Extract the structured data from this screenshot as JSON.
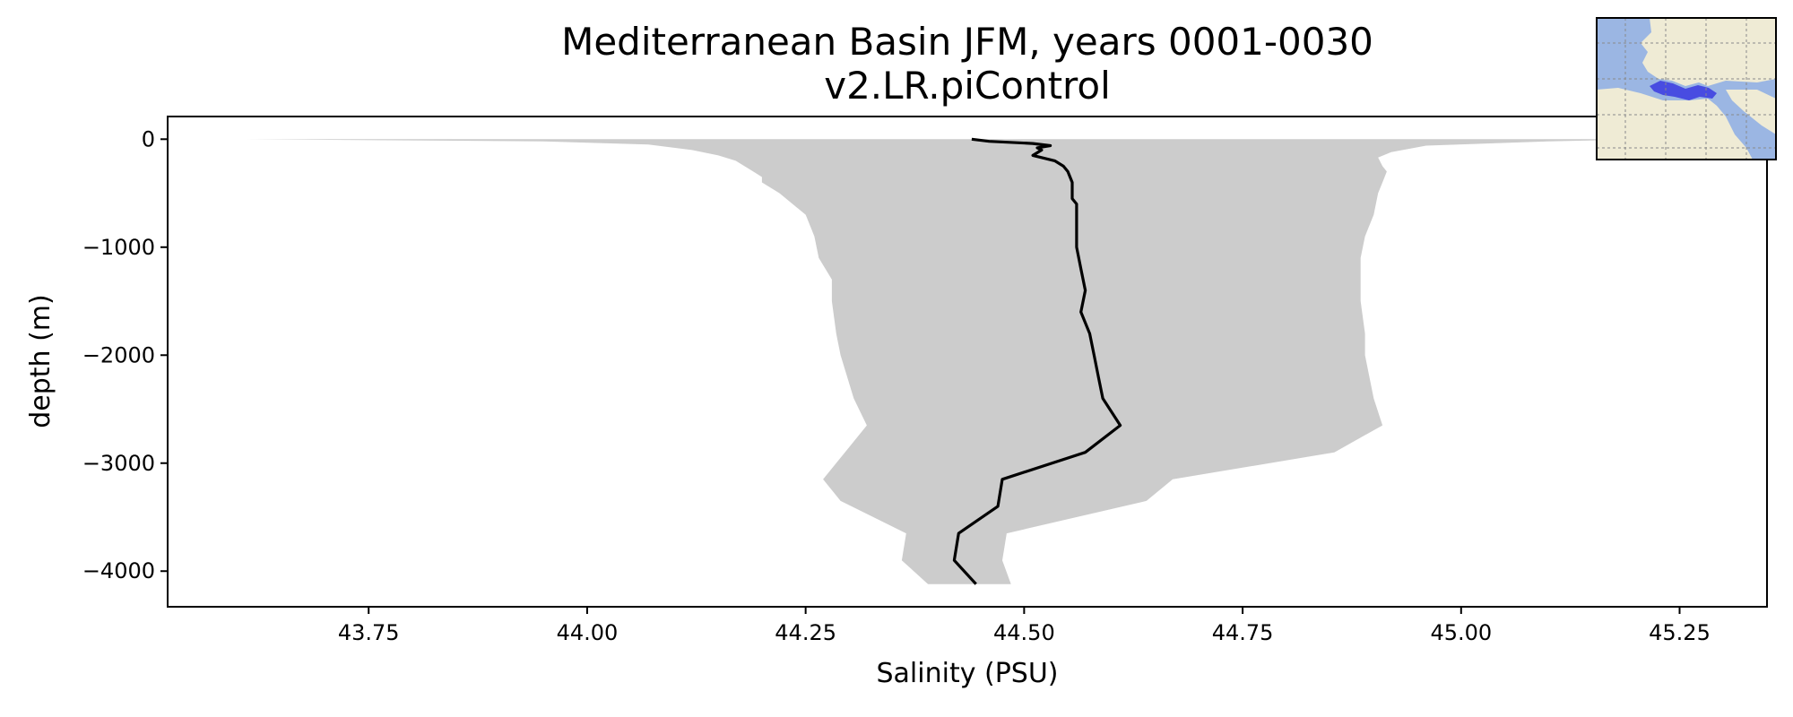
{
  "chart_data": {
    "type": "line",
    "title": "Mediterranean Basin JFM, years 0001-0030",
    "subtitle": "v2.LR.piControl",
    "xlabel": "Salinity (PSU)",
    "ylabel": "depth (m)",
    "xlim": [
      43.52,
      45.35
    ],
    "ylim": [
      -4330,
      210
    ],
    "xticks": [
      {
        "value": 43.75,
        "label": "43.75"
      },
      {
        "value": 44.0,
        "label": "44.00"
      },
      {
        "value": 44.25,
        "label": "44.25"
      },
      {
        "value": 44.5,
        "label": "44.50"
      },
      {
        "value": 44.75,
        "label": "44.75"
      },
      {
        "value": 45.0,
        "label": "45.00"
      },
      {
        "value": 45.25,
        "label": "45.25"
      }
    ],
    "yticks": [
      {
        "value": 0,
        "label": "0"
      },
      {
        "value": -1000,
        "label": "−1000"
      },
      {
        "value": -2000,
        "label": "−2000"
      },
      {
        "value": -3000,
        "label": "−3000"
      },
      {
        "value": -4000,
        "label": "−4000"
      }
    ],
    "grid": false,
    "colors": {
      "mean_line": "#000000",
      "range_fill": "#cccccc",
      "ocean": "#9bb6e3",
      "land": "#efebd5",
      "region": "#3a3ae0"
    },
    "series": [
      {
        "role": "mean",
        "depth": [
          0,
          -20,
          -40,
          -60,
          -80,
          -100,
          -150,
          -200,
          -250,
          -300,
          -400,
          -500,
          -550,
          -600,
          -700,
          -800,
          -900,
          -1000,
          -1200,
          -1400,
          -1600,
          -1800,
          -2000,
          -2200,
          -2400,
          -2650,
          -2900,
          -3150,
          -3400,
          -3650,
          -3900,
          -4120
        ],
        "values": [
          44.44,
          44.46,
          44.51,
          44.53,
          44.515,
          44.52,
          44.51,
          44.535,
          44.545,
          44.55,
          44.555,
          44.555,
          44.555,
          44.56,
          44.56,
          44.56,
          44.56,
          44.56,
          44.565,
          44.57,
          44.565,
          44.575,
          44.58,
          44.585,
          44.59,
          44.61,
          44.57,
          44.475,
          44.47,
          44.425,
          44.42,
          44.445
        ]
      },
      {
        "role": "min",
        "depth": [
          0,
          -20,
          -50,
          -100,
          -150,
          -200,
          -300,
          -350,
          -400,
          -500,
          -700,
          -900,
          -1100,
          -1300,
          -1500,
          -1800,
          -2000,
          -2400,
          -2650,
          -2900,
          -3150,
          -3350,
          -3650,
          -3900,
          -4120
        ],
        "values": [
          43.61,
          43.95,
          44.07,
          44.12,
          44.15,
          44.17,
          44.19,
          44.2,
          44.2,
          44.22,
          44.25,
          44.26,
          44.265,
          44.28,
          44.28,
          44.285,
          44.29,
          44.305,
          44.32,
          44.295,
          44.27,
          44.29,
          44.365,
          44.36,
          44.39
        ]
      },
      {
        "role": "max",
        "depth": [
          0,
          -20,
          -60,
          -120,
          -170,
          -250,
          -300,
          -400,
          -500,
          -700,
          -900,
          -1100,
          -1300,
          -1500,
          -1800,
          -2000,
          -2400,
          -2650,
          -2900,
          -3150,
          -3350,
          -3650,
          -3900,
          -4120
        ],
        "values": [
          45.22,
          45.1,
          44.96,
          44.92,
          44.905,
          44.91,
          44.915,
          44.91,
          44.905,
          44.9,
          44.89,
          44.885,
          44.885,
          44.885,
          44.89,
          44.89,
          44.9,
          44.91,
          44.855,
          44.67,
          44.64,
          44.48,
          44.475,
          44.485
        ]
      }
    ]
  },
  "inset_map": {
    "icon": "mediterranean-region-map"
  }
}
